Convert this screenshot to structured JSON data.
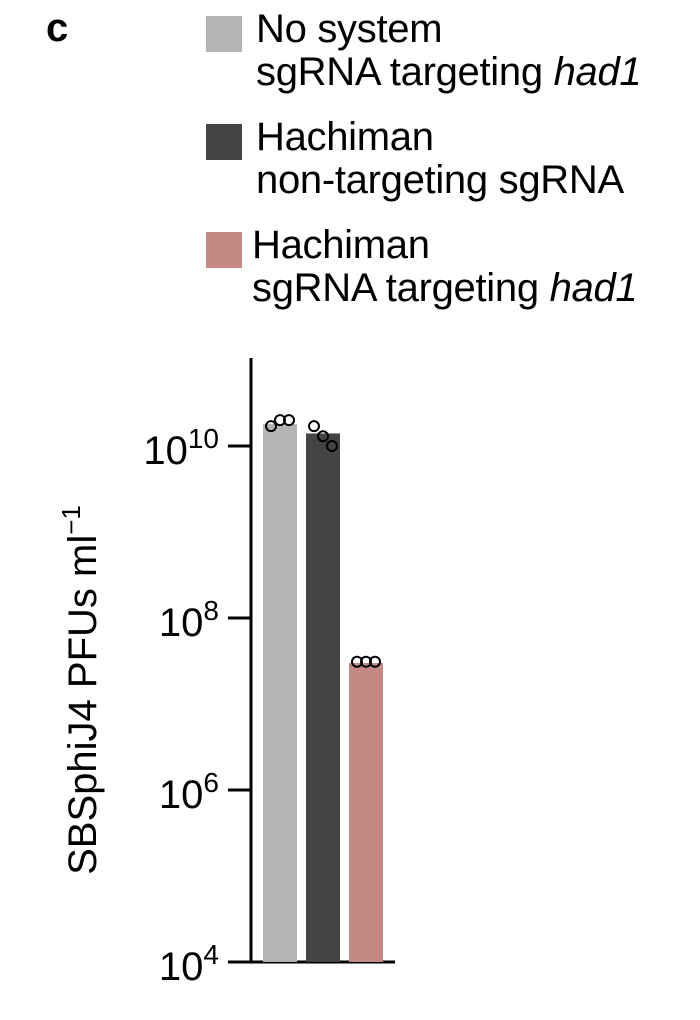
{
  "panel_label": "c",
  "legend": [
    {
      "line1": "No system",
      "line2": "sgRNA targeting ",
      "line2_italic": "had1",
      "color": "#b4b4b4"
    },
    {
      "line1": "Hachiman",
      "line2": "non-targeting sgRNA",
      "line2_italic": "",
      "color": "#444444"
    },
    {
      "line1": "Hachiman",
      "line2": "sgRNA targeting ",
      "line2_italic": "had1",
      "color": "#c58985"
    }
  ],
  "chart_data": {
    "type": "bar",
    "scale": "log",
    "ylabel": "SBSphiJ4 PFUs ml",
    "ylabel_superscript": "−1",
    "ylim": [
      10000,
      100000000000
    ],
    "yticks": [
      {
        "base": "10",
        "exp": "10",
        "value": 10000000000
      },
      {
        "base": "10",
        "exp": "8",
        "value": 100000000
      },
      {
        "base": "10",
        "exp": "6",
        "value": 1000000
      },
      {
        "base": "10",
        "exp": "4",
        "value": 10000
      }
    ],
    "categories": [
      "No system sgRNA targeting had1",
      "Hachiman non-targeting sgRNA",
      "Hachiman sgRNA targeting had1"
    ],
    "values": [
      18000000000,
      14000000000,
      30000000
    ],
    "colors": [
      "#b4b4b4",
      "#444444",
      "#c58985"
    ],
    "points": [
      [
        17000000000,
        20000000000,
        20000000000
      ],
      [
        17000000000,
        13000000000,
        10000000000
      ],
      [
        31000000,
        31000000,
        31000000
      ]
    ]
  }
}
